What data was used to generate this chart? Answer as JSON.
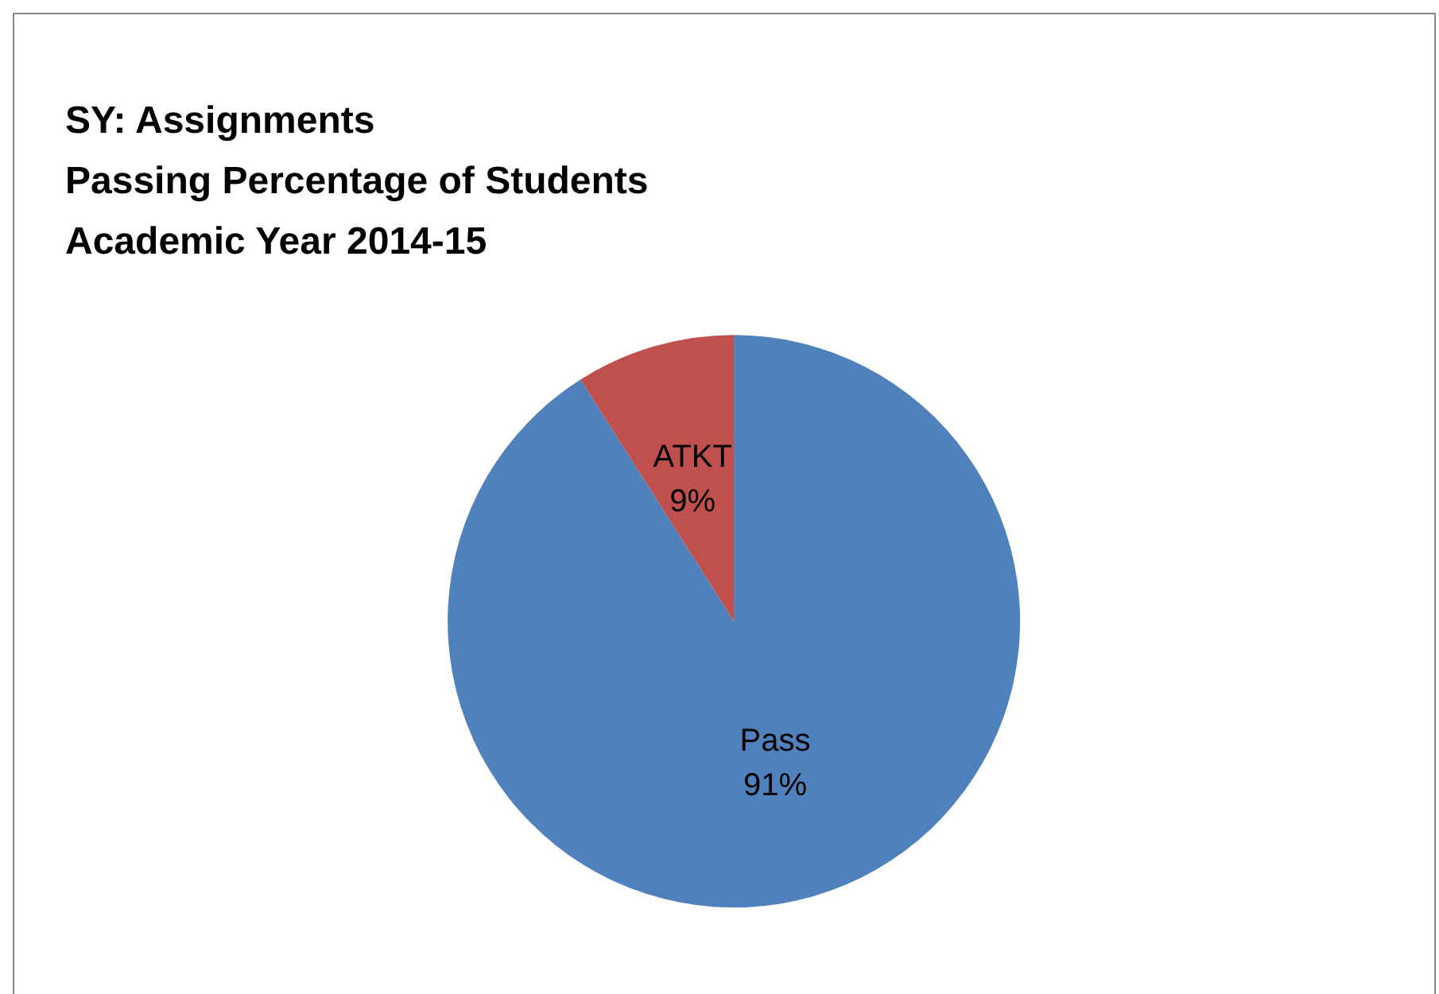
{
  "chart_data": {
    "type": "pie",
    "title": "SY: Assignments\nPassing Percentage of Students\nAcademic Year 2014-15",
    "categories": [
      "Pass",
      "ATKT"
    ],
    "values": [
      91,
      9
    ],
    "colors": [
      "#4f81bd",
      "#c0504d"
    ],
    "value_labels": [
      "91%",
      "9%"
    ],
    "legend": false
  }
}
